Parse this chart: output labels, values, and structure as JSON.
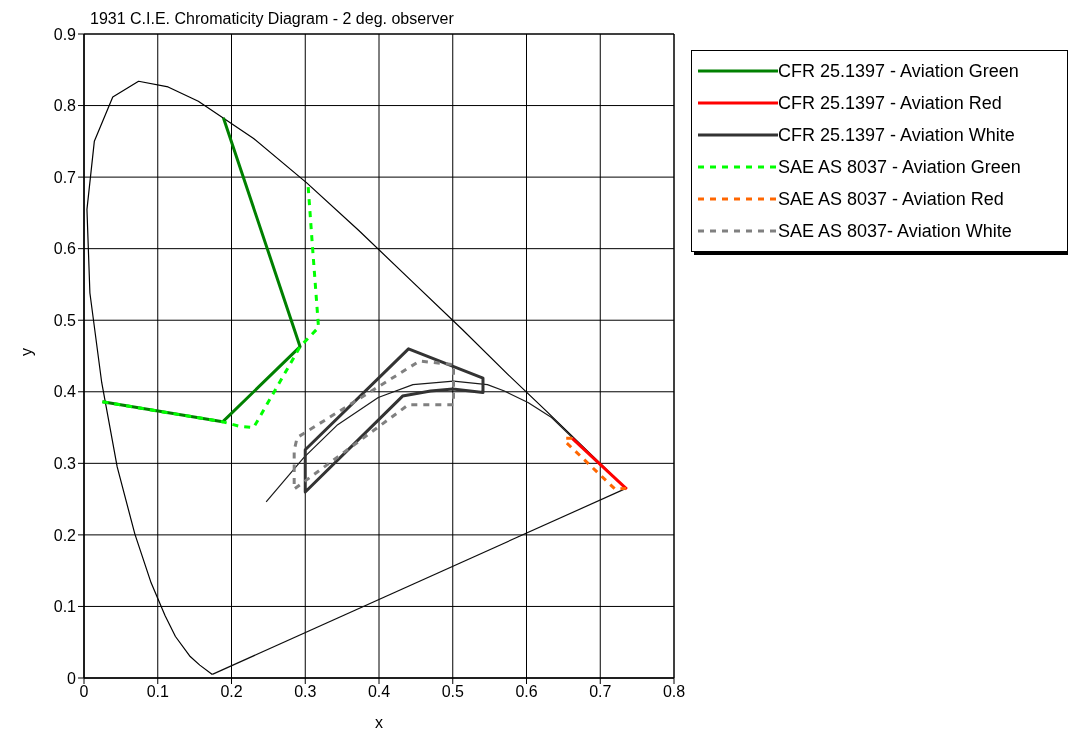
{
  "chart_data": {
    "type": "line",
    "title": "1931 C.I.E. Chromaticity Diagram - 2 deg. observer",
    "xlabel": "x",
    "ylabel": "y",
    "xlim": [
      0,
      0.8
    ],
    "ylim": [
      0,
      0.9
    ],
    "xticks": [
      0,
      0.1,
      0.2,
      0.3,
      0.4,
      0.5,
      0.6,
      0.7,
      0.8
    ],
    "yticks": [
      0,
      0.1,
      0.2,
      0.3,
      0.4,
      0.5,
      0.6,
      0.7,
      0.8,
      0.9
    ],
    "grid": true,
    "legend": "top right",
    "marker": "none",
    "line_style": "solid",
    "series": [
      {
        "color": "#000000",
        "x": [
          0.174,
          0.157,
          0.144,
          0.124,
          0.11,
          0.091,
          0.069,
          0.045,
          0.024,
          0.008,
          0.004,
          0.014,
          0.039,
          0.074,
          0.114,
          0.155,
          0.23,
          0.302,
          0.373,
          0.444,
          0.513,
          0.575,
          0.627,
          0.692,
          0.735
        ],
        "values": [
          0.005,
          0.018,
          0.03,
          0.058,
          0.087,
          0.133,
          0.201,
          0.295,
          0.413,
          0.538,
          0.655,
          0.75,
          0.812,
          0.834,
          0.826,
          0.806,
          0.754,
          0.692,
          0.625,
          0.555,
          0.487,
          0.424,
          0.373,
          0.308,
          0.265
        ]
      },
      {
        "color": "#0d0d0d",
        "x": [
          0.735,
          0.174
        ],
        "values": [
          0.265,
          0.005
        ]
      },
      {
        "color": "#1a1a1a",
        "x": [
          0.247,
          0.298,
          0.344,
          0.399,
          0.446,
          0.501,
          0.547,
          0.57,
          0.602,
          0.634,
          0.662
        ],
        "values": [
          0.246,
          0.308,
          0.354,
          0.392,
          0.41,
          0.415,
          0.41,
          0.401,
          0.385,
          0.364,
          0.336
        ]
      },
      {
        "name": "CFR 25.1397 - Aviation Green",
        "color": "#008000",
        "x": [
          0.189,
          0.293,
          0.188,
          0.025
        ],
        "values": [
          0.783,
          0.463,
          0.358,
          0.386
        ]
      },
      {
        "name": "CFR 25.1397 - Aviation Red",
        "color": "#ff0000",
        "x": [
          0.662,
          0.736
        ],
        "values": [
          0.335,
          0.264
        ]
      },
      {
        "name": "CFR 25.1397 - Aviation White",
        "color": "#333333",
        "x": [
          0.3,
          0.3,
          0.44,
          0.541,
          0.541,
          0.5,
          0.47,
          0.432,
          0.3,
          0.3
        ],
        "values": [
          0.29,
          0.319,
          0.46,
          0.419,
          0.399,
          0.404,
          0.401,
          0.394,
          0.26,
          0.3
        ]
      },
      {
        "name": "SAE AS 8037 - Aviation Green",
        "color": "#00ff00",
        "line_style": "dashed",
        "x": [
          0.025,
          0.188,
          0.21,
          0.23,
          0.293,
          0.318,
          0.31,
          0.304
        ],
        "values": [
          0.386,
          0.358,
          0.352,
          0.35,
          0.463,
          0.49,
          0.6,
          0.686
        ]
      },
      {
        "name": "SAE AS 8037 - Aviation Red",
        "color": "#ff6600",
        "line_style": "dashed",
        "x": [
          0.662,
          0.653,
          0.653,
          0.72,
          0.735
        ],
        "values": [
          0.335,
          0.335,
          0.33,
          0.264,
          0.265
        ]
      },
      {
        "name": "SAE AS 8037- Aviation White",
        "color": "#808080",
        "line_style": "dashed",
        "x": [
          0.285,
          0.285,
          0.289,
          0.455,
          0.501,
          0.501,
          0.44,
          0.285,
          0.285
        ],
        "values": [
          0.29,
          0.318,
          0.336,
          0.443,
          0.438,
          0.382,
          0.382,
          0.264,
          0.3
        ]
      }
    ]
  }
}
